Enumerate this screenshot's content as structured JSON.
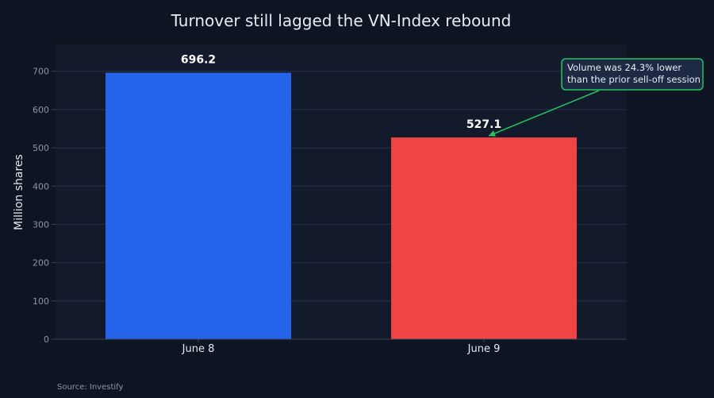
{
  "chart_data": {
    "type": "bar",
    "title": "Turnover still lagged the VN-Index rebound",
    "ylabel": "Million shares",
    "xlabel": "",
    "categories": [
      "June 8",
      "June 9"
    ],
    "values": [
      696.2,
      527.1
    ],
    "data_labels": [
      "696.2",
      "527.1"
    ],
    "bar_colors": [
      "#2563eb",
      "#ef4444"
    ],
    "ylim": [
      0,
      770
    ],
    "yticks": [
      0,
      100,
      200,
      300,
      400,
      500,
      600,
      700
    ],
    "grid": true,
    "legend": "none",
    "annotation": {
      "lines": [
        "Volume was 24.3% lower",
        "than the prior sell-off session"
      ],
      "target_category": "June 9",
      "border_color": "#22c55e",
      "fill_color": "#1e2a44"
    },
    "source": "Source: Investify"
  }
}
